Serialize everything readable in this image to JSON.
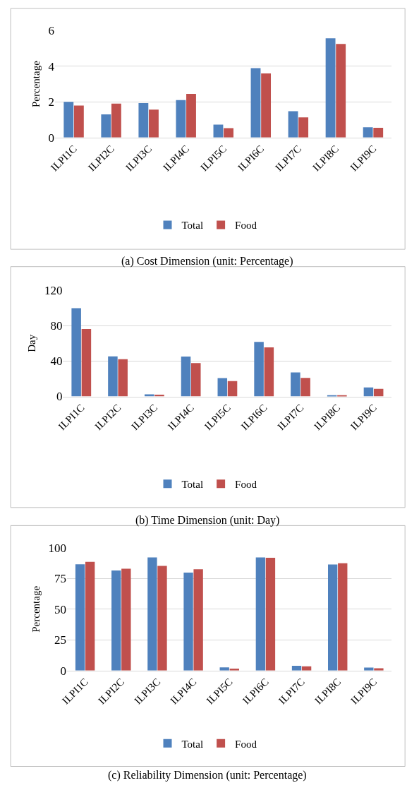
{
  "chart_data": [
    {
      "type": "bar",
      "title": "(a) Cost Dimension (unit: Percentage)",
      "ylabel": "Percentage",
      "categories": [
        "ILPI1C",
        "ILPI2C",
        "ILPI3C",
        "ILPI4C",
        "ILPI5C",
        "ILPI6C",
        "ILPI7C",
        "ILPI8C",
        "ILPI9C"
      ],
      "series": [
        {
          "name": "Total",
          "color": "#4f81bd",
          "values": [
            2.0,
            1.3,
            1.93,
            2.1,
            0.73,
            3.9,
            1.48,
            5.57,
            0.58
          ]
        },
        {
          "name": "Food",
          "color": "#c0504d",
          "values": [
            1.8,
            1.9,
            1.57,
            2.45,
            0.53,
            3.6,
            1.13,
            5.25,
            0.55
          ]
        }
      ],
      "ylim": [
        0,
        6
      ],
      "yticks": [
        0,
        2,
        4,
        6
      ],
      "grid": "y",
      "legend": "bottom"
    },
    {
      "type": "bar",
      "title": "(b) Time Dimension (unit: Day)",
      "ylabel": "Day",
      "categories": [
        "ILPI1C",
        "ILPI2C",
        "ILPI3C",
        "ILPI4C",
        "ILPI5C",
        "ILPI6C",
        "ILPI7C",
        "ILPI8C",
        "ILPI9C"
      ],
      "series": [
        {
          "name": "Total",
          "color": "#4f81bd",
          "values": [
            99.7,
            45.3,
            2.4,
            45,
            20.8,
            61.7,
            27.2,
            1.5,
            10.2
          ]
        },
        {
          "name": "Food",
          "color": "#c0504d",
          "values": [
            76.3,
            42,
            2,
            37.7,
            17.3,
            55.5,
            21,
            1.5,
            8.6
          ]
        }
      ],
      "ylim": [
        0,
        120
      ],
      "yticks": [
        0,
        40,
        80,
        120
      ],
      "grid": "y",
      "legend": "bottom"
    },
    {
      "type": "bar",
      "title": "(c) Reliability Dimension (unit: Percentage)",
      "ylabel": "Percentage",
      "categories": [
        "ILPI1C",
        "ILPI2C",
        "ILPI3C",
        "ILPI4C",
        "ILPI5C",
        "ILPI6C",
        "ILPI7C",
        "ILPI8C",
        "ILPI9C"
      ],
      "series": [
        {
          "name": "Total",
          "color": "#4f81bd",
          "values": [
            86.6,
            81.5,
            92.2,
            79.8,
            2.7,
            92.2,
            3.9,
            86.4,
            2.5
          ]
        },
        {
          "name": "Food",
          "color": "#c0504d",
          "values": [
            88.5,
            82.9,
            85.2,
            82.5,
            1.6,
            91.8,
            3.5,
            87.4,
            1.9
          ]
        }
      ],
      "ylim": [
        0,
        100
      ],
      "yticks": [
        0,
        25,
        50,
        75,
        100
      ],
      "grid": "y",
      "legend": "bottom"
    }
  ]
}
